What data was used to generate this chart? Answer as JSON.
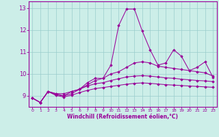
{
  "xlabel": "Windchill (Refroidissement éolien,°C)",
  "ylabel": "",
  "xlim": [
    -0.5,
    23.5
  ],
  "ylim": [
    8.5,
    13.3
  ],
  "yticks": [
    9,
    10,
    11,
    12,
    13
  ],
  "xticks": [
    0,
    1,
    2,
    3,
    4,
    5,
    6,
    7,
    8,
    9,
    10,
    11,
    12,
    13,
    14,
    15,
    16,
    17,
    18,
    19,
    20,
    21,
    22,
    23
  ],
  "bg_color": "#cceee8",
  "line_color": "#990099",
  "grid_color": "#99cccc",
  "series": [
    [
      8.9,
      8.7,
      9.2,
      9.1,
      9.1,
      9.2,
      9.3,
      9.6,
      9.8,
      9.8,
      10.4,
      12.2,
      12.95,
      12.95,
      11.95,
      11.1,
      10.4,
      10.5,
      11.1,
      10.8,
      10.15,
      10.3,
      10.55,
      9.85
    ],
    [
      8.9,
      8.7,
      9.2,
      9.1,
      9.0,
      9.2,
      9.3,
      9.5,
      9.7,
      9.8,
      10.0,
      10.1,
      10.3,
      10.5,
      10.55,
      10.5,
      10.35,
      10.3,
      10.25,
      10.2,
      10.15,
      10.1,
      10.05,
      9.9
    ],
    [
      8.9,
      8.7,
      9.2,
      9.05,
      9.0,
      9.1,
      9.3,
      9.45,
      9.55,
      9.6,
      9.7,
      9.78,
      9.86,
      9.9,
      9.92,
      9.9,
      9.86,
      9.82,
      9.8,
      9.76,
      9.73,
      9.7,
      9.68,
      9.65
    ],
    [
      8.9,
      8.7,
      9.2,
      9.02,
      8.95,
      9.03,
      9.15,
      9.25,
      9.33,
      9.38,
      9.43,
      9.48,
      9.53,
      9.57,
      9.59,
      9.57,
      9.54,
      9.51,
      9.49,
      9.47,
      9.45,
      9.43,
      9.41,
      9.39
    ]
  ]
}
